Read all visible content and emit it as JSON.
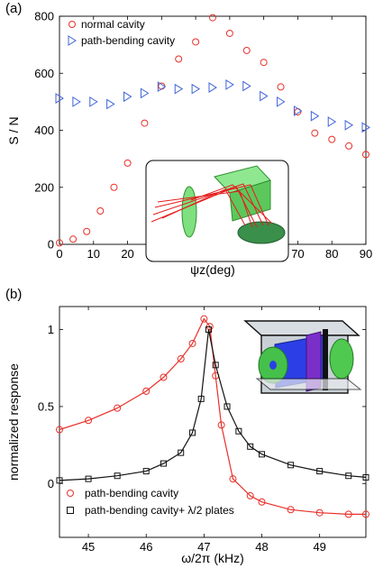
{
  "chart_data": [
    {
      "panel_label": "(a)",
      "type": "scatter",
      "xlabel": "ψz(deg)",
      "ylabel": "S / N",
      "xlim": [
        0,
        90
      ],
      "ylim": [
        0,
        800
      ],
      "xticks": [
        0,
        10,
        20,
        30,
        40,
        50,
        60,
        70,
        80,
        90
      ],
      "yticks": [
        0,
        200,
        400,
        600,
        800
      ],
      "legend_position": "top-left",
      "series": [
        {
          "name": "normal cavity",
          "marker": "circle",
          "color": "#e8302a",
          "x": [
            0,
            4,
            8,
            12,
            16,
            20,
            25,
            30,
            35,
            40,
            45,
            50,
            55,
            60,
            65,
            70,
            75,
            80,
            85,
            90
          ],
          "y": [
            5,
            18,
            45,
            117,
            200,
            285,
            425,
            555,
            650,
            710,
            795,
            740,
            680,
            638,
            552,
            465,
            390,
            368,
            345,
            315
          ]
        },
        {
          "name": "path-bending cavity",
          "marker": "triangle-right",
          "color": "#3f63d8",
          "x": [
            0,
            5,
            10,
            15,
            20,
            25,
            30,
            35,
            40,
            45,
            50,
            55,
            60,
            65,
            70,
            75,
            80,
            85,
            90
          ],
          "y": [
            512,
            500,
            500,
            492,
            518,
            530,
            553,
            545,
            545,
            550,
            560,
            555,
            520,
            500,
            468,
            450,
            430,
            418,
            410
          ]
        }
      ],
      "inset": {
        "description_icon": "optical-cavity-ray-diagram-icon"
      }
    },
    {
      "panel_label": "(b)",
      "type": "line",
      "xlabel": "ω/2π (kHz)",
      "ylabel": "normalized response",
      "xlim": [
        44.5,
        49.8
      ],
      "ylim": [
        -0.35,
        1.15
      ],
      "xticks": [
        45,
        46,
        47,
        48,
        49
      ],
      "yticks": [
        0,
        0.5,
        1
      ],
      "legend_position": "bottom-left",
      "series": [
        {
          "name": "path-bending cavity",
          "marker": "circle",
          "color": "#e8302a",
          "x": [
            44.5,
            45.0,
            45.5,
            46.0,
            46.3,
            46.6,
            46.8,
            47.0,
            47.1,
            47.2,
            47.3,
            47.5,
            47.8,
            48.0,
            48.5,
            49.0,
            49.5,
            49.8
          ],
          "y": [
            0.35,
            0.41,
            0.49,
            0.6,
            0.69,
            0.81,
            0.91,
            1.07,
            1.02,
            0.7,
            0.38,
            0.03,
            -0.08,
            -0.12,
            -0.17,
            -0.19,
            -0.2,
            -0.2
          ]
        },
        {
          "name": "path-bending cavity+ λ/2 plates",
          "marker": "square",
          "color": "#111111",
          "x": [
            44.5,
            45.0,
            45.5,
            46.0,
            46.3,
            46.6,
            46.8,
            46.95,
            47.08,
            47.2,
            47.4,
            47.6,
            47.8,
            48.0,
            48.5,
            49.0,
            49.5,
            49.8
          ],
          "y": [
            0.02,
            0.03,
            0.05,
            0.08,
            0.13,
            0.2,
            0.33,
            0.55,
            1.0,
            0.77,
            0.5,
            0.34,
            0.24,
            0.19,
            0.12,
            0.08,
            0.05,
            0.04
          ]
        }
      ],
      "inset": {
        "description_icon": "cavity-prism-assembly-icon"
      }
    }
  ]
}
